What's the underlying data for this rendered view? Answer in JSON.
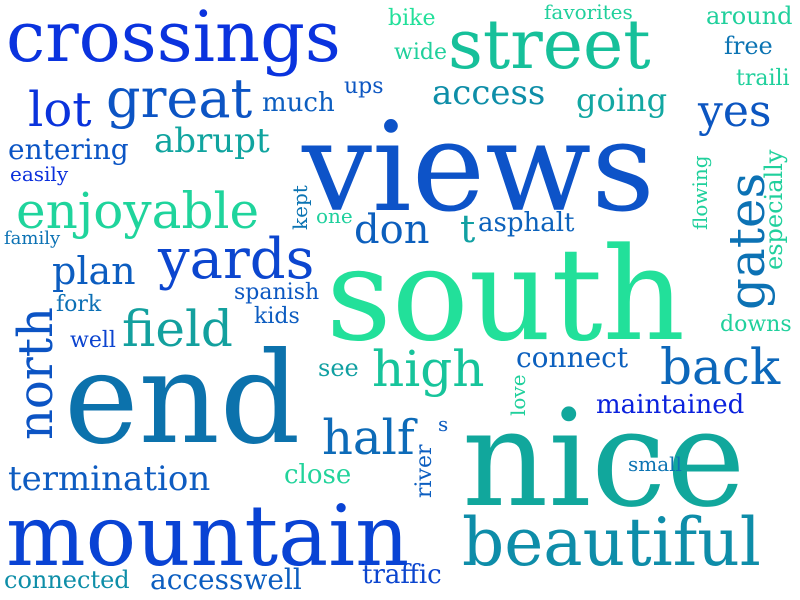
{
  "words": [
    {
      "text": "views",
      "color": "#0d53c8"
    },
    {
      "text": "south",
      "color": "#22e09a"
    },
    {
      "text": "end",
      "color": "#0c72ac"
    },
    {
      "text": "nice",
      "color": "#11a79c"
    },
    {
      "text": "mountain",
      "color": "#0943d4"
    },
    {
      "text": "beautiful",
      "color": "#0e8da9"
    },
    {
      "text": "crossings",
      "color": "#0a33de"
    },
    {
      "text": "street",
      "color": "#16c09a"
    },
    {
      "text": "great",
      "color": "#0c54c4"
    },
    {
      "text": "lot",
      "color": "#0a33dc"
    },
    {
      "text": "enjoyable",
      "color": "#1fd49c"
    },
    {
      "text": "yards",
      "color": "#0c46cf"
    },
    {
      "text": "field",
      "color": "#13a09e"
    },
    {
      "text": "high",
      "color": "#17c49b"
    },
    {
      "text": "back",
      "color": "#0c67ba"
    },
    {
      "text": "half",
      "color": "#0d6bb8"
    },
    {
      "text": "termination",
      "color": "#0e5cc1"
    },
    {
      "text": "abrupt",
      "color": "#10a49f"
    },
    {
      "text": "access",
      "color": "#0e8ea8"
    },
    {
      "text": "going",
      "color": "#12a7a2"
    },
    {
      "text": "yes",
      "color": "#0c56c1"
    },
    {
      "text": "plan",
      "color": "#0c5dc0"
    },
    {
      "text": "don",
      "color": "#0c5fbd"
    },
    {
      "text": "asphalt",
      "color": "#0c62bc"
    },
    {
      "text": "connect",
      "color": "#0c60be"
    },
    {
      "text": "maintained",
      "color": "#0b22dd"
    },
    {
      "text": "entering",
      "color": "#0b55c5"
    },
    {
      "text": "much",
      "color": "#0c5ec0"
    },
    {
      "text": "close",
      "color": "#22d39b"
    },
    {
      "text": "accesswell",
      "color": "#0c5ec0"
    },
    {
      "text": "traffic",
      "color": "#0b45cf"
    },
    {
      "text": "connected",
      "color": "#0e8ea8"
    },
    {
      "text": "spanish",
      "color": "#0c58c2"
    },
    {
      "text": "kids",
      "color": "#0c5cc0"
    },
    {
      "text": "fork",
      "color": "#0c70b5"
    },
    {
      "text": "well",
      "color": "#0c44d0"
    },
    {
      "text": "see",
      "color": "#11a0a2"
    },
    {
      "text": "family",
      "color": "#0c72b4"
    },
    {
      "text": "easily",
      "color": "#0b2fdc"
    },
    {
      "text": "one",
      "color": "#1fd09d"
    },
    {
      "text": "ups",
      "color": "#0c56c2"
    },
    {
      "text": "wide",
      "color": "#20d09c"
    },
    {
      "text": "bike",
      "color": "#22e09a"
    },
    {
      "text": "favorites",
      "color": "#20d09c"
    },
    {
      "text": "around",
      "color": "#20d09c"
    },
    {
      "text": "free",
      "color": "#0c74b3"
    },
    {
      "text": "traili",
      "color": "#20d09c"
    },
    {
      "text": "small",
      "color": "#0c74b3"
    },
    {
      "text": "downs",
      "color": "#20d09c"
    },
    {
      "text": "t",
      "color": "#11a0a2"
    },
    {
      "text": "s",
      "color": "#0c5cc0"
    },
    {
      "text": "north",
      "color": "#0c54c4"
    },
    {
      "text": "gates",
      "color": "#0c72b4"
    },
    {
      "text": "especially",
      "color": "#20d09c"
    },
    {
      "text": "flowing",
      "color": "#20d09c"
    },
    {
      "text": "kept",
      "color": "#0c74b3"
    },
    {
      "text": "love",
      "color": "#20d09c"
    },
    {
      "text": "river",
      "color": "#0c5ec0"
    }
  ]
}
